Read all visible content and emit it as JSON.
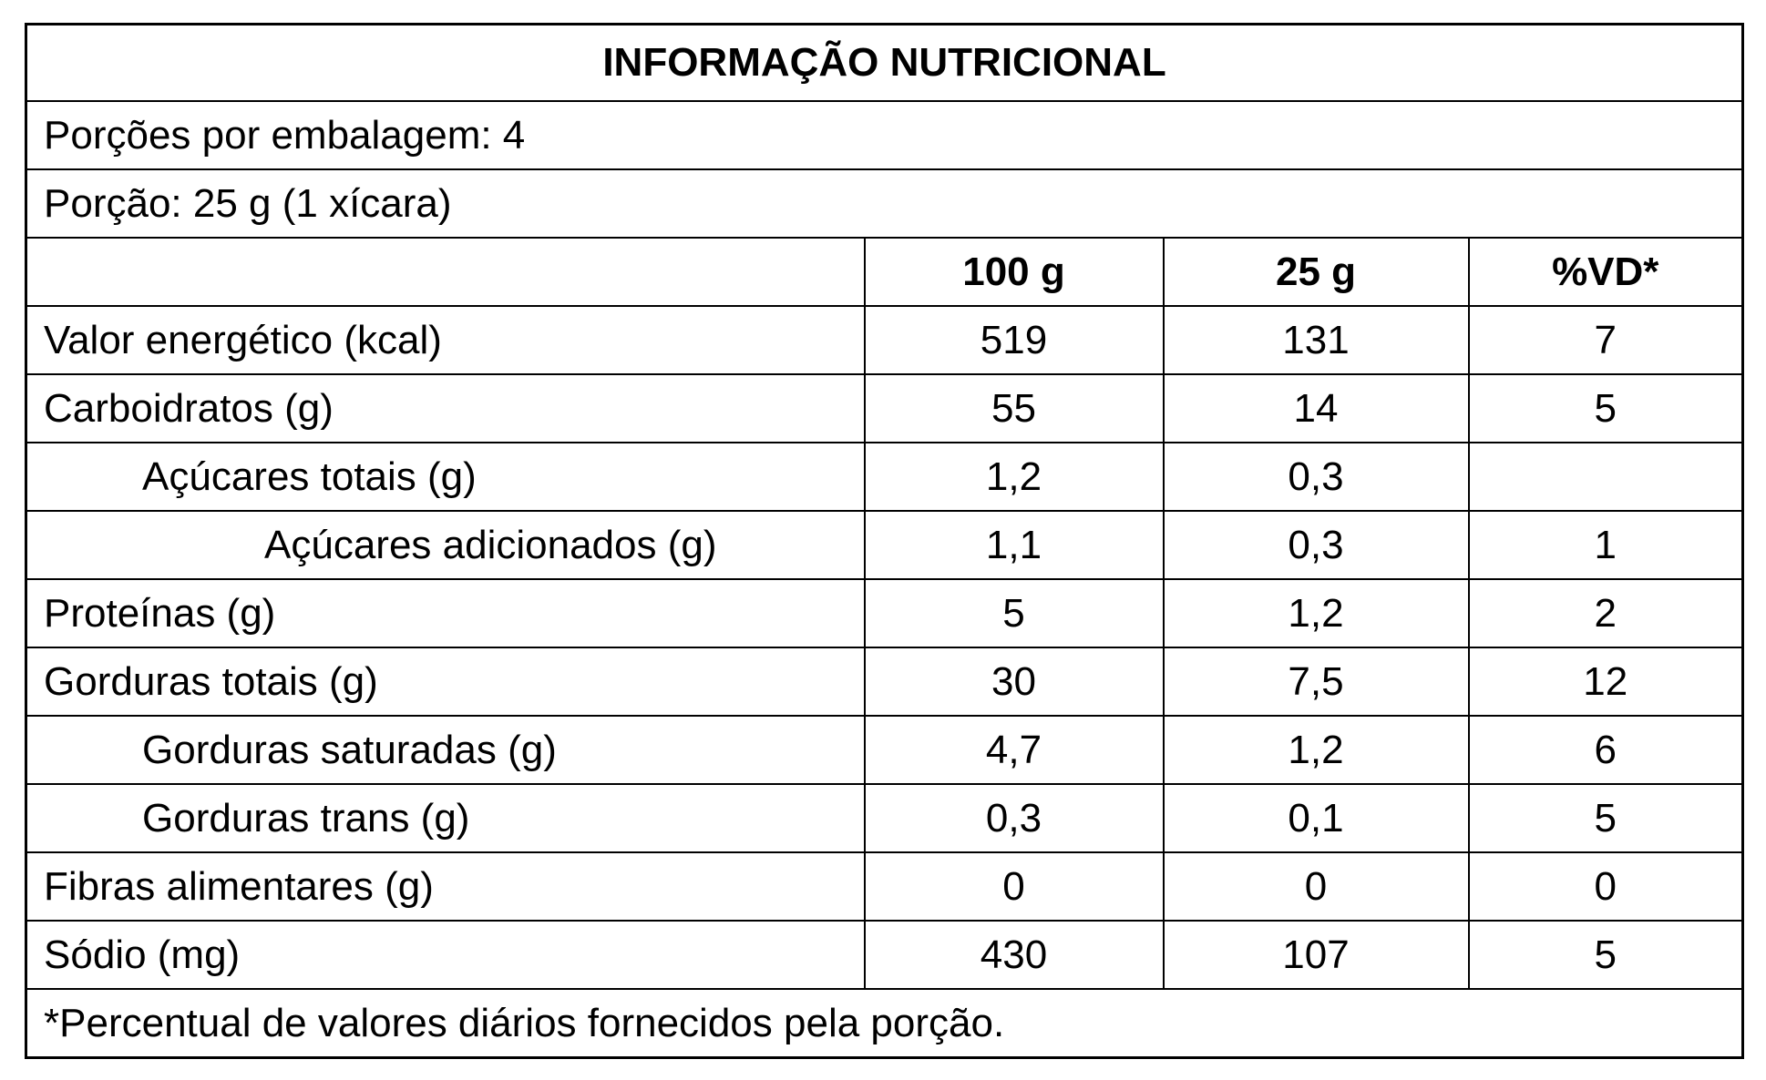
{
  "title": "INFORMAÇÃO NUTRICIONAL",
  "servings_per_package": "Porções por embalagem: 4",
  "serving_size": "Porção: 25 g (1 xícara)",
  "table": {
    "header": [
      "100 g",
      "25 g",
      "%VD*"
    ],
    "rows": [
      [
        "Valor energético (kcal)",
        519,
        131,
        7
      ],
      [
        "Carboidratos (g)",
        55,
        14,
        5
      ],
      [
        "Açúcares totais (g)",
        "1,2",
        "0,3",
        null
      ],
      [
        "Açúcares adicionados (g)",
        "1,1",
        "0,3",
        1
      ],
      [
        "Proteínas (g)",
        5,
        "1,2",
        2
      ],
      [
        "Gorduras totais (g)",
        30,
        "7,5",
        12
      ],
      [
        "Gorduras saturadas (g)",
        "4,7",
        "1,2",
        6
      ],
      [
        "Gorduras trans (g)",
        "0,3",
        "0,1",
        5
      ],
      [
        "Fibras alimentares (g)",
        0,
        0,
        0
      ],
      [
        "Sódio (mg)",
        430,
        107,
        5
      ]
    ]
  },
  "footnote": "*Percentual de valores diários fornecidos pela porção."
}
